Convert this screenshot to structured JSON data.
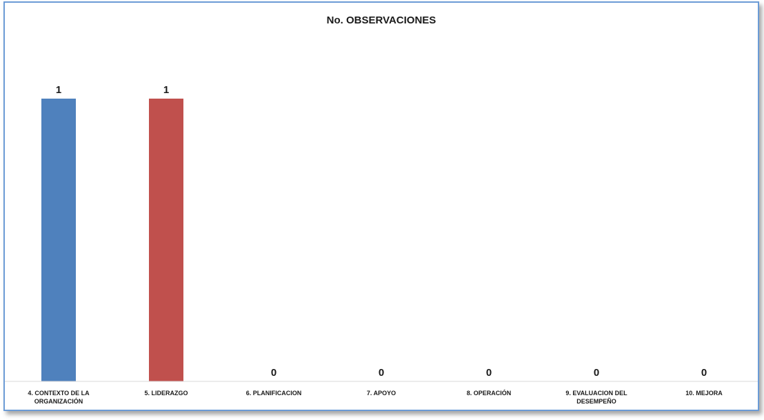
{
  "chart_data": {
    "type": "bar",
    "title": "No. OBSERVACIONES",
    "categories": [
      "4. CONTEXTO DE LA ORGANIZACIÓN",
      "5. LIDERAZGO",
      "6. PLANIFICACION",
      "7. APOYO",
      "8. OPERACIÓN",
      "9. EVALUACION DEL DESEMPEÑO",
      "10. MEJORA"
    ],
    "category_lines": [
      [
        "4. CONTEXTO DE LA",
        "ORGANIZACIÓN"
      ],
      [
        "5. LIDERAZGO"
      ],
      [
        "6. PLANIFICACION"
      ],
      [
        "7. APOYO"
      ],
      [
        "8. OPERACIÓN"
      ],
      [
        "9. EVALUACION DEL",
        "DESEMPEÑO"
      ],
      [
        "10. MEJORA"
      ]
    ],
    "values": [
      1,
      1,
      0,
      0,
      0,
      0,
      0
    ],
    "data_labels": [
      "1",
      "1",
      "0",
      "0",
      "0",
      "0",
      "0"
    ],
    "colors": [
      "#4f81bd",
      "#c0504d",
      "#9bbb59",
      "#8064a2",
      "#4bacc6",
      "#f79646",
      "#2c4d75"
    ],
    "ylim": [
      0,
      1
    ],
    "grid": false,
    "legend": false,
    "xlabel": "",
    "ylabel": ""
  }
}
